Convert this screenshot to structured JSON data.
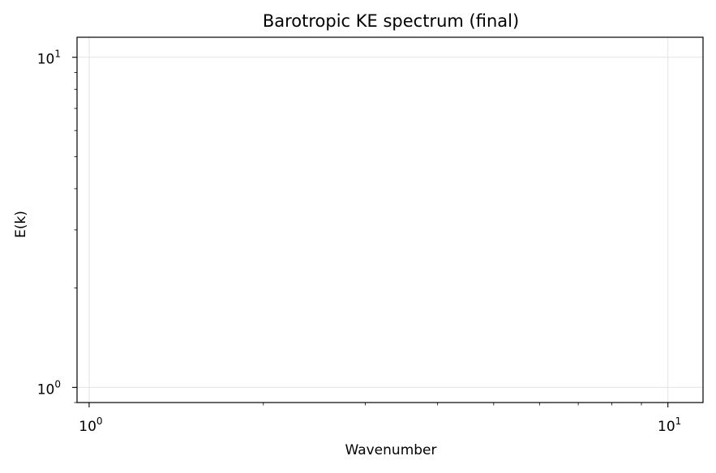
{
  "chart_data": {
    "type": "line",
    "title": "Barotropic KE spectrum (final)",
    "xlabel": "Wavenumber",
    "ylabel": "E(k)",
    "xscale": "log",
    "yscale": "log",
    "xlim": [
      0.953,
      11.5
    ],
    "ylim": [
      0.9,
      11.5
    ],
    "grid": true,
    "series": [],
    "xticks": [
      {
        "value": 1,
        "base": "10",
        "exp": "0"
      },
      {
        "value": 10,
        "base": "10",
        "exp": "1"
      }
    ],
    "yticks": [
      {
        "value": 1,
        "base": "10",
        "exp": "0"
      },
      {
        "value": 10,
        "base": "10",
        "exp": "1"
      }
    ],
    "x_minor_ticks": [
      2,
      3,
      4,
      5,
      6,
      7,
      8,
      9
    ],
    "y_minor_ticks": [
      0.9,
      2,
      3,
      4,
      5,
      6,
      7,
      8,
      9
    ]
  }
}
